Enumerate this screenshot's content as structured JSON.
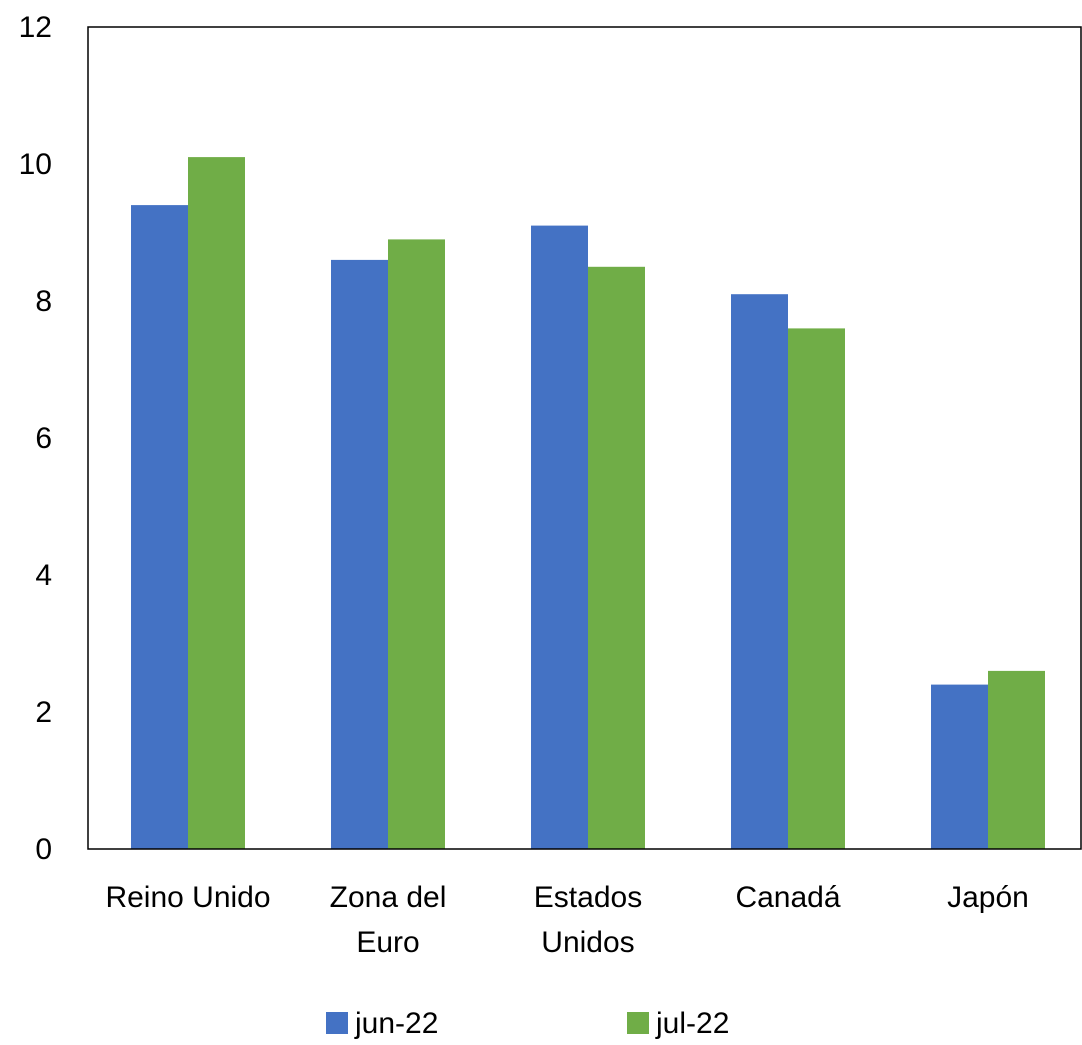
{
  "chart_data": {
    "type": "bar",
    "categories": [
      [
        "Reino Unido"
      ],
      [
        "Zona del",
        "Euro"
      ],
      [
        "Estados",
        "Unidos"
      ],
      [
        "Canadá"
      ],
      [
        "Japón"
      ]
    ],
    "series": [
      {
        "name": "jun-22",
        "color": "#4472C4",
        "values": [
          9.4,
          8.6,
          9.1,
          8.1,
          2.4
        ]
      },
      {
        "name": "jul-22",
        "color": "#70AD47",
        "values": [
          10.1,
          8.9,
          8.5,
          7.6,
          2.6
        ]
      }
    ],
    "ylim": [
      0,
      12
    ],
    "yticks": [
      0,
      2,
      4,
      6,
      8,
      10,
      12
    ],
    "grid": false,
    "legend": "bottom"
  }
}
